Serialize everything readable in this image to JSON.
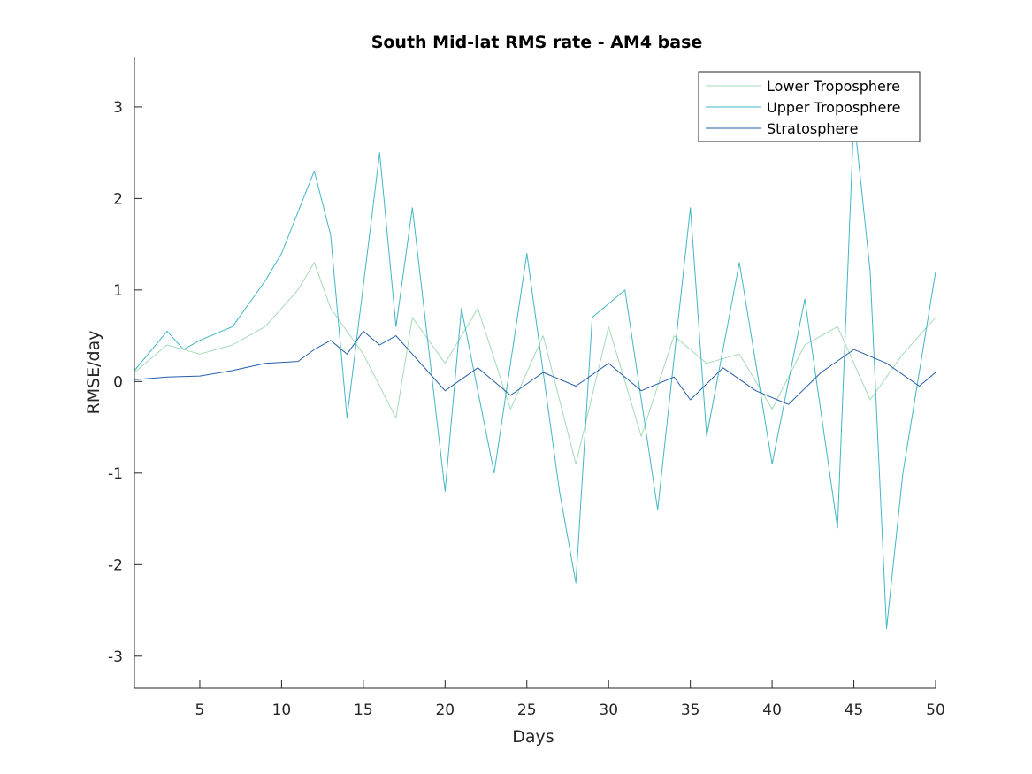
{
  "chart_data": {
    "type": "line",
    "title": "South Mid-lat RMS rate - AM4 base",
    "xlabel": "Days",
    "ylabel": "RMSE/day",
    "xlim": [
      1,
      50
    ],
    "ylim": [
      -3.35,
      3.55
    ],
    "xticks": [
      5,
      10,
      15,
      20,
      25,
      30,
      35,
      40,
      45,
      50
    ],
    "yticks": [
      -3,
      -2,
      -1,
      0,
      1,
      2,
      3
    ],
    "legend_position": "top-right",
    "grid": false,
    "series": [
      {
        "name": "Lower Troposphere",
        "color": "#a3dbb5",
        "x": [
          1,
          3,
          5,
          7,
          9,
          11,
          12,
          13,
          15,
          17,
          18,
          20,
          22,
          24,
          26,
          28,
          30,
          32,
          34,
          36,
          38,
          40,
          42,
          44,
          46,
          48,
          50
        ],
        "values": [
          0.1,
          0.4,
          0.3,
          0.4,
          0.6,
          1.0,
          1.3,
          0.8,
          0.3,
          -0.4,
          0.7,
          0.2,
          0.8,
          -0.3,
          0.5,
          -0.9,
          0.6,
          -0.6,
          0.5,
          0.2,
          0.3,
          -0.3,
          0.4,
          0.6,
          -0.2,
          0.3,
          0.7
        ]
      },
      {
        "name": "Upper Troposphere",
        "color": "#41b6c4",
        "x": [
          1,
          3,
          4,
          5,
          7,
          9,
          10,
          12,
          13,
          14,
          16,
          17,
          18,
          20,
          21,
          23,
          25,
          27,
          28,
          29,
          31,
          33,
          35,
          36,
          38,
          40,
          42,
          44,
          45,
          46,
          47,
          48,
          50
        ],
        "values": [
          0.12,
          0.55,
          0.35,
          0.45,
          0.6,
          1.1,
          1.4,
          2.3,
          1.6,
          -0.4,
          2.5,
          0.6,
          1.9,
          -1.2,
          0.8,
          -1.0,
          1.4,
          -1.2,
          -2.2,
          0.7,
          1.0,
          -1.4,
          1.9,
          -0.6,
          1.3,
          -0.9,
          0.9,
          -1.6,
          2.9,
          1.2,
          -2.7,
          -1.0,
          1.2
        ]
      },
      {
        "name": "Stratosphere",
        "color": "#225ea8",
        "x": [
          1,
          3,
          5,
          7,
          9,
          11,
          12,
          13,
          14,
          15,
          16,
          17,
          18,
          19,
          20,
          22,
          24,
          26,
          28,
          30,
          32,
          34,
          35,
          37,
          39,
          41,
          43,
          45,
          47,
          49,
          50
        ],
        "values": [
          0.02,
          0.05,
          0.06,
          0.12,
          0.2,
          0.22,
          0.35,
          0.45,
          0.3,
          0.55,
          0.4,
          0.5,
          0.3,
          0.1,
          -0.1,
          0.15,
          -0.15,
          0.1,
          -0.05,
          0.2,
          -0.1,
          0.05,
          -0.2,
          0.15,
          -0.1,
          -0.25,
          0.1,
          0.35,
          0.2,
          -0.05,
          0.1
        ]
      }
    ]
  }
}
